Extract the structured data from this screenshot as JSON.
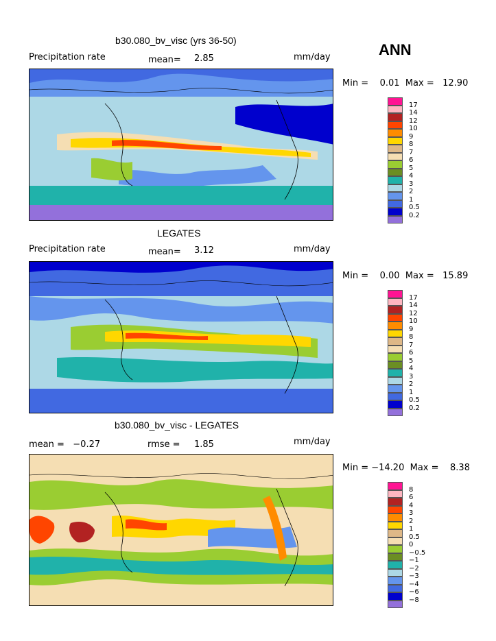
{
  "header": {
    "season": "ANN"
  },
  "panels": [
    {
      "title": "b30.080_bv_visc (yrs 36-50)",
      "left_label": "Precipitation rate",
      "mean_label": "mean=",
      "mean_value": "2.85",
      "units": "mm/day",
      "minmax": "Min =    0.01  Max =   12.90",
      "colorbar": {
        "labels": [
          "17",
          "14",
          "12",
          "10",
          "9",
          "8",
          "7",
          "6",
          "5",
          "4",
          "3",
          "2",
          "1",
          "0.5",
          "0.2"
        ],
        "colors": [
          "#ff1493",
          "#ffb6c1",
          "#b22222",
          "#ff4500",
          "#ff8c00",
          "#ffd700",
          "#deb887",
          "#f5deb3",
          "#9acd32",
          "#6b8e23",
          "#20b2aa",
          "#add8e6",
          "#6495ed",
          "#4169e1",
          "#0000cd",
          "#9370db"
        ]
      }
    },
    {
      "title": "LEGATES",
      "left_label": "Precipitation rate",
      "mean_label": "mean=",
      "mean_value": "3.12",
      "units": "mm/day",
      "minmax": "Min =    0.00  Max =   15.89",
      "colorbar": {
        "labels": [
          "17",
          "14",
          "12",
          "10",
          "9",
          "8",
          "7",
          "6",
          "5",
          "4",
          "3",
          "2",
          "1",
          "0.5",
          "0.2"
        ],
        "colors": [
          "#ff1493",
          "#ffb6c1",
          "#b22222",
          "#ff4500",
          "#ff8c00",
          "#ffd700",
          "#deb887",
          "#f5deb3",
          "#9acd32",
          "#6b8e23",
          "#20b2aa",
          "#add8e6",
          "#6495ed",
          "#4169e1",
          "#0000cd",
          "#9370db"
        ]
      }
    },
    {
      "title": "b30.080_bv_visc - LEGATES",
      "left_label": "mean =   −0.27",
      "mean_label": "rmse =",
      "mean_value": "1.85",
      "units": "mm/day",
      "minmax": "Min = −14.20  Max =    8.38",
      "colorbar": {
        "labels": [
          "8",
          "6",
          "4",
          "3",
          "2",
          "1",
          "0.5",
          "0",
          "−0.5",
          "−1",
          "−2",
          "−3",
          "−4",
          "−6",
          "−8"
        ],
        "colors": [
          "#ff1493",
          "#ffb6c1",
          "#b22222",
          "#ff4500",
          "#ff8c00",
          "#ffd700",
          "#deb887",
          "#f5deb3",
          "#9acd32",
          "#6b8e23",
          "#20b2aa",
          "#add8e6",
          "#6495ed",
          "#4169e1",
          "#0000cd",
          "#9370db"
        ]
      }
    }
  ]
}
